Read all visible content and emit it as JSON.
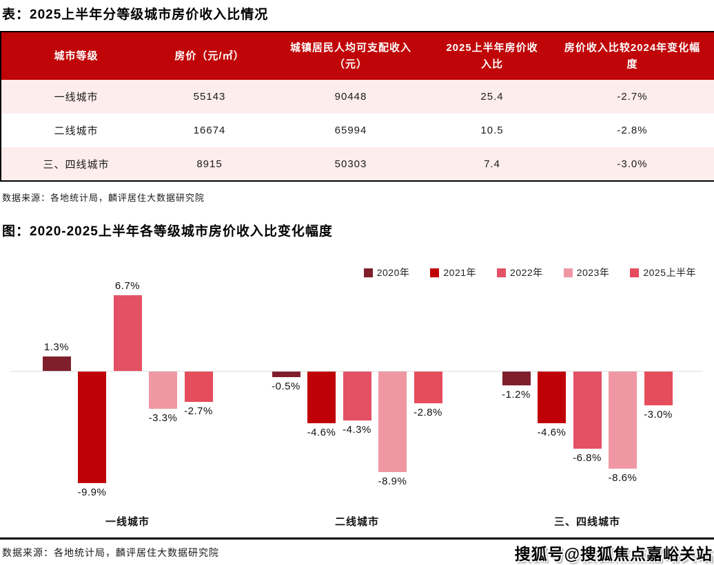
{
  "table_section": {
    "title": "表：2025上半年分等级城市房价收入比情况",
    "source": "数据来源：各地统计局，麟评居住大数据研究院"
  },
  "chart_section": {
    "title": "图：2020-2025上半年各等级城市房价收入比变化幅度",
    "source": "数据来源：各地统计局，麟评居住大数据研究院"
  },
  "watermark": "搜狐号@搜狐焦点嘉峪关站",
  "colors": {
    "table_header_bg": "#C00508",
    "table_row_pink": "#FDEDEC",
    "axis_line": "#DDDDDD"
  },
  "chart_data": [
    {
      "type": "table",
      "title": "表：2025上半年分等级城市房价收入比情况",
      "columns": [
        "城市等级",
        "房价（元/㎡）",
        "城镇居民人均可支配收入（元）",
        "2025上半年房价收入比",
        "房价收入比较2024年变化幅度"
      ],
      "rows": [
        [
          "一线城市",
          "55143",
          "90448",
          "25.4",
          "-2.7%"
        ],
        [
          "二线城市",
          "16674",
          "65994",
          "10.5",
          "-2.8%"
        ],
        [
          "三、四线城市",
          "8915",
          "50303",
          "7.4",
          "-3.0%"
        ]
      ]
    },
    {
      "type": "bar",
      "title": "图：2020-2025上半年各等级城市房价收入比变化幅度",
      "categories": [
        "一线城市",
        "二线城市",
        "三、四线城市"
      ],
      "series": [
        {
          "name": "2020年",
          "color": "#7F1F2B",
          "values": [
            1.3,
            -0.5,
            -1.2
          ]
        },
        {
          "name": "2021年",
          "color": "#C00007",
          "values": [
            -9.9,
            -4.6,
            -4.6
          ]
        },
        {
          "name": "2022年",
          "color": "#E45165",
          "values": [
            6.7,
            -4.3,
            -6.8
          ]
        },
        {
          "name": "2023年",
          "color": "#EF97A3",
          "values": [
            -3.3,
            -8.9,
            -8.6
          ]
        },
        {
          "name": "2025上半年",
          "color": "#E64D5C",
          "values": [
            -2.7,
            -2.8,
            -3.0
          ]
        }
      ],
      "value_label_format": "{v}%",
      "ylim": [
        -11,
        8
      ],
      "legend_position": "top-right",
      "grid": false
    }
  ]
}
